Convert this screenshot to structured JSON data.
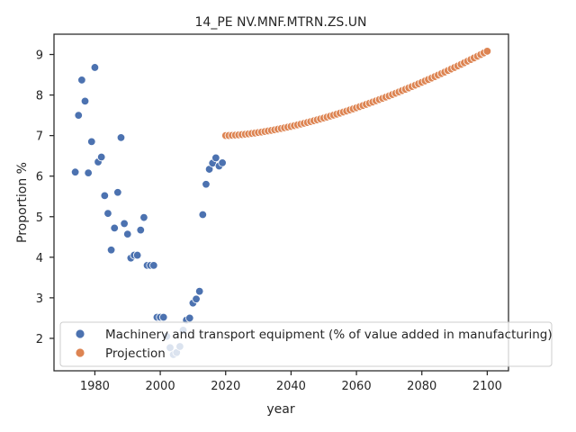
{
  "chart_data": {
    "type": "scatter",
    "title": "14_PE NV.MNF.MTRN.ZS.UN",
    "xlabel": "year",
    "ylabel": "Proportion %",
    "xlim": [
      1967.5,
      2106.5
    ],
    "ylim": [
      1.2,
      9.5
    ],
    "xticks": [
      1980,
      2000,
      2020,
      2040,
      2060,
      2080,
      2100
    ],
    "yticks": [
      2,
      3,
      4,
      5,
      6,
      7,
      8,
      9
    ],
    "grid": false,
    "legend_position": "lower-left",
    "series": [
      {
        "name": "Machinery and transport equipment (% of value added in manufacturing)",
        "color": "#4c72b0",
        "points": [
          [
            1974,
            6.1
          ],
          [
            1975,
            7.5
          ],
          [
            1976,
            8.37
          ],
          [
            1977,
            7.85
          ],
          [
            1978,
            6.08
          ],
          [
            1979,
            6.85
          ],
          [
            1980,
            8.68
          ],
          [
            1981,
            6.35
          ],
          [
            1982,
            6.47
          ],
          [
            1983,
            5.52
          ],
          [
            1984,
            5.08
          ],
          [
            1985,
            4.18
          ],
          [
            1986,
            4.72
          ],
          [
            1987,
            5.6
          ],
          [
            1988,
            6.95
          ],
          [
            1989,
            4.83
          ],
          [
            1990,
            4.57
          ],
          [
            1991,
            3.98
          ],
          [
            1992,
            4.05
          ],
          [
            1993,
            4.05
          ],
          [
            1994,
            4.67
          ],
          [
            1995,
            4.98
          ],
          [
            1996,
            3.8
          ],
          [
            1997,
            3.8
          ],
          [
            1998,
            3.8
          ],
          [
            1999,
            2.52
          ],
          [
            2000,
            2.52
          ],
          [
            2001,
            2.52
          ],
          [
            2002,
            2.05
          ],
          [
            2003,
            1.77
          ],
          [
            2004,
            1.6
          ],
          [
            2005,
            1.65
          ],
          [
            2006,
            1.8
          ],
          [
            2007,
            2.2
          ],
          [
            2008,
            2.45
          ],
          [
            2009,
            2.5
          ],
          [
            2010,
            2.87
          ],
          [
            2011,
            2.97
          ],
          [
            2012,
            3.16
          ],
          [
            2013,
            5.05
          ],
          [
            2014,
            5.8
          ],
          [
            2015,
            6.17
          ],
          [
            2016,
            6.32
          ],
          [
            2017,
            6.45
          ],
          [
            2018,
            6.25
          ],
          [
            2019,
            6.33
          ],
          [
            2020,
            7.0
          ]
        ]
      },
      {
        "name": "Projection",
        "color": "#dd8452",
        "start_year": 2020,
        "end_year": 2100,
        "start_value": 7.0,
        "end_value": 9.08,
        "curvature": 1.6
      }
    ]
  }
}
